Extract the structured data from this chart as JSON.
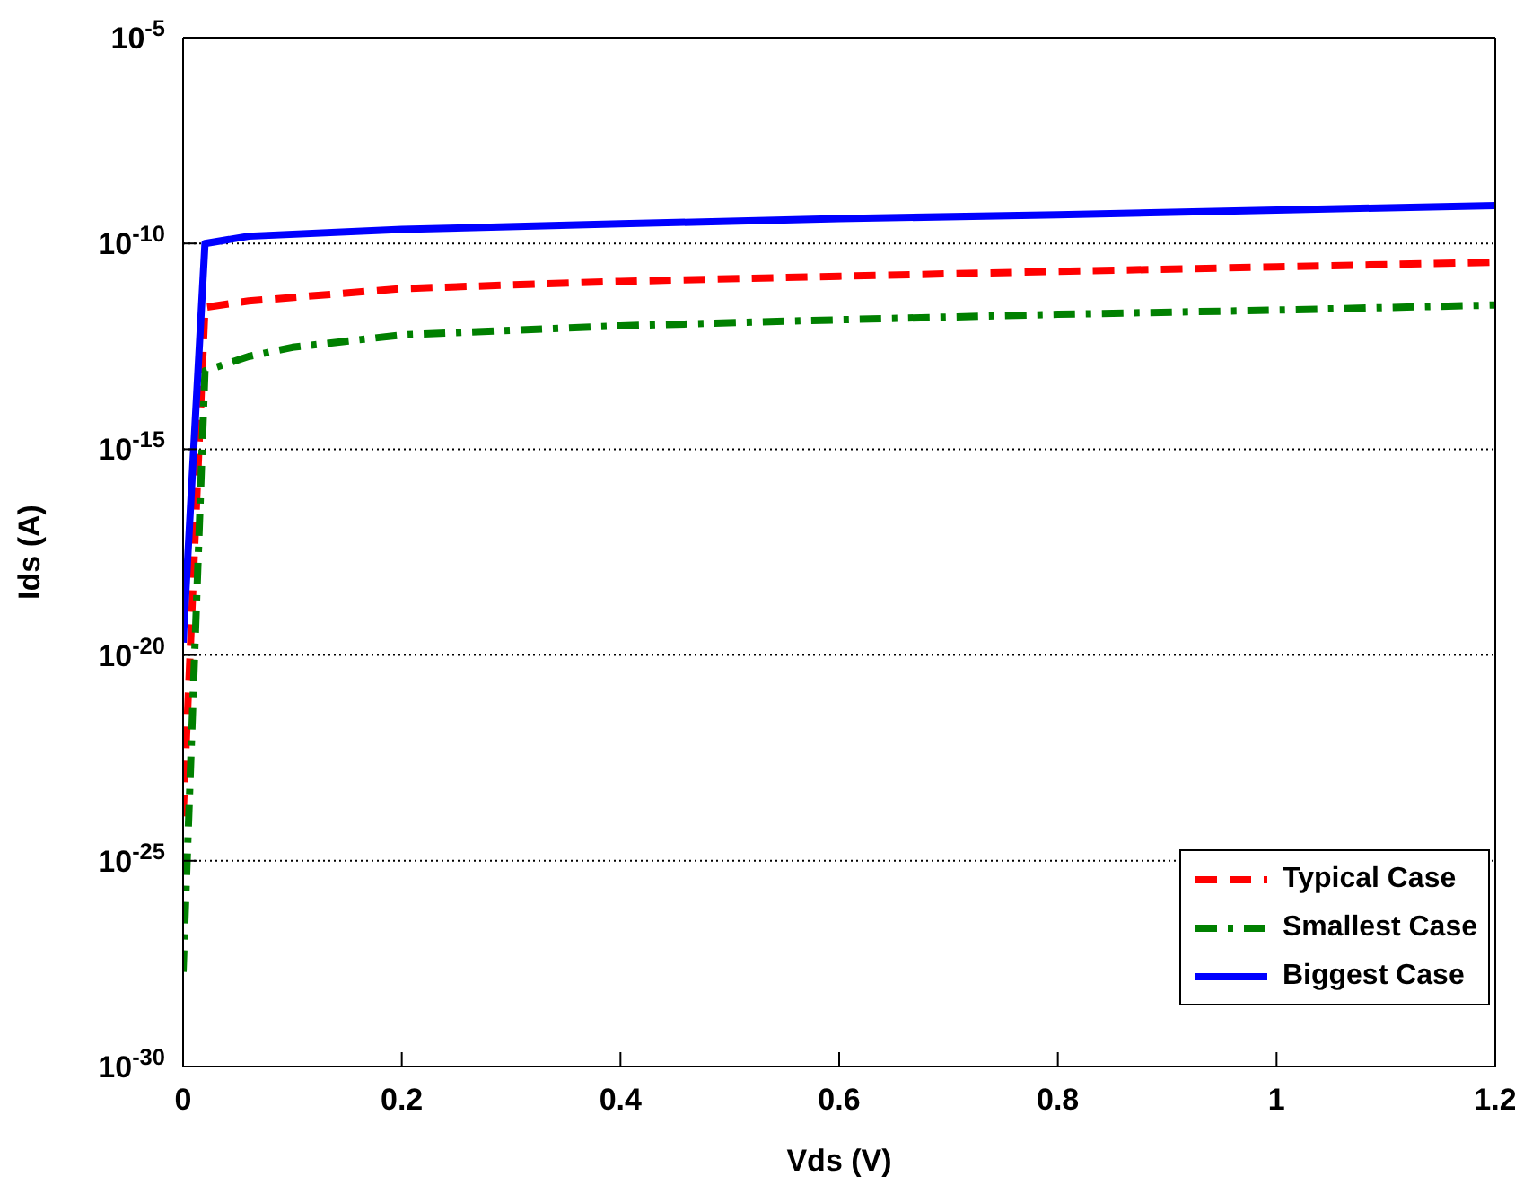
{
  "chart_data": {
    "type": "line",
    "xlabel": "Vds (V)",
    "ylabel": "Ids (A)",
    "log": "y",
    "grid": "y",
    "legend": "bottom right",
    "xlim": [
      0,
      1.2
    ],
    "xticks": [
      0,
      0.2,
      0.4,
      0.6,
      0.8,
      1,
      1.2
    ],
    "ylim": [
      1e-30,
      1e-05
    ],
    "yticks": [
      {
        "value": 1e-30,
        "label": "10$^{-30}$"
      },
      {
        "value": 1e-25,
        "label": "10$^{-25}$"
      },
      {
        "value": 1e-20,
        "label": "10$^{-20}$"
      },
      {
        "value": 1e-15,
        "label": "10$^{-15}$"
      },
      {
        "value": 1e-10,
        "label": "10$^{-10}$"
      },
      {
        "value": 1e-05,
        "label": "10$^{-5}$"
      }
    ],
    "series": [
      {
        "name": "Typical Case",
        "color": "#ff0000",
        "line_style": "dashed",
        "x": [
          0,
          0.02,
          0.06,
          0.2,
          0.4,
          0.6,
          0.8,
          1,
          1.2
        ],
        "values": [
          1.2e-24,
          2.8e-12,
          4e-12,
          8e-12,
          1.2e-11,
          1.6e-11,
          2.1e-11,
          2.7e-11,
          3.5e-11
        ]
      },
      {
        "name": "Smallest Case",
        "color": "#008000",
        "line_style": "dashdot",
        "x": [
          0,
          0.02,
          0.06,
          0.1,
          0.2,
          0.4,
          0.6,
          0.8,
          1,
          1.2
        ],
        "values": [
          2e-28,
          8e-14,
          1.8e-13,
          3e-13,
          6e-13,
          1e-12,
          1.4e-12,
          1.9e-12,
          2.4e-12,
          3.2e-12
        ]
      },
      {
        "name": "Biggest Case",
        "color": "#0000ff",
        "line_style": "solid",
        "x": [
          0,
          0.02,
          0.06,
          0.2,
          0.4,
          0.6,
          0.8,
          1,
          1.2
        ],
        "values": [
          2e-20,
          1e-10,
          1.5e-10,
          2.2e-10,
          3e-10,
          4e-10,
          5e-10,
          6.5e-10,
          8.3e-10
        ]
      }
    ]
  }
}
